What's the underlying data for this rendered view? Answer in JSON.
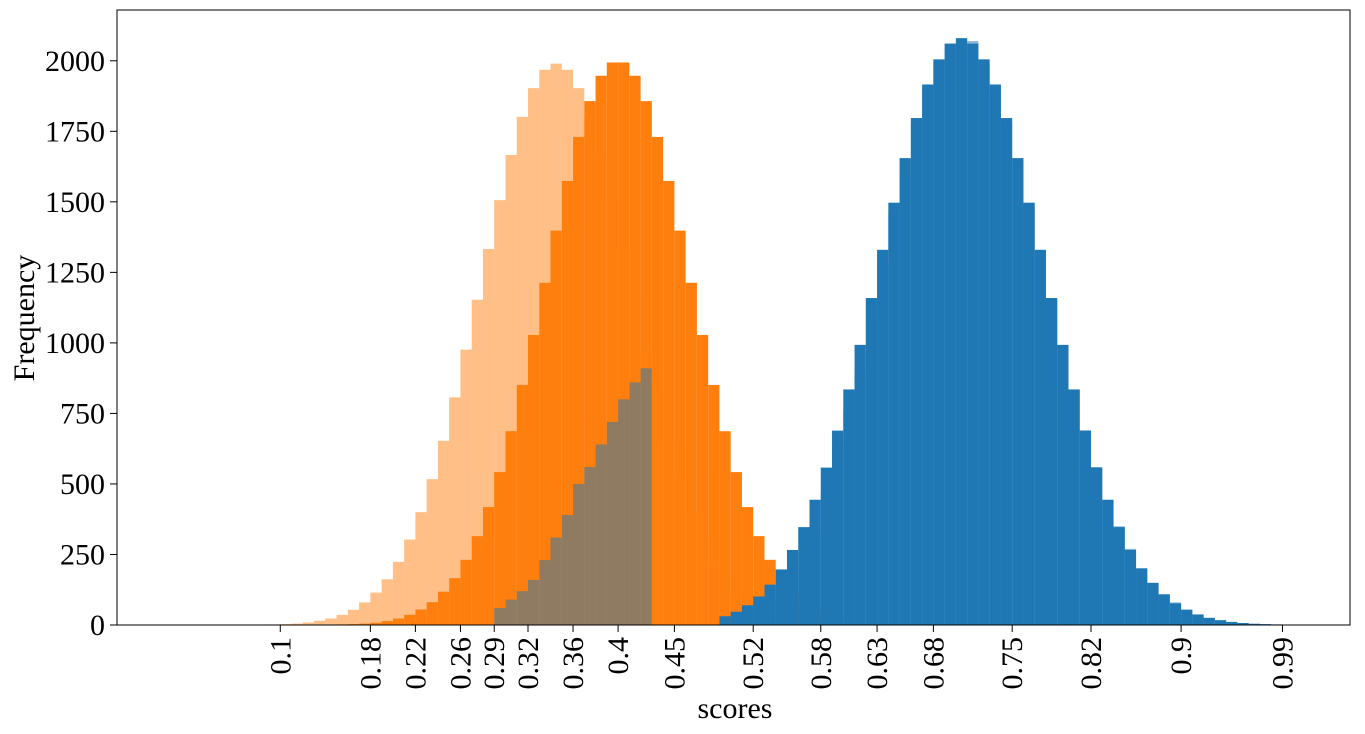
{
  "chart_data": {
    "type": "histogram",
    "xlabel": "scores",
    "ylabel": "Frequency",
    "bins": [
      0.09,
      0.1,
      0.11,
      0.12,
      0.13,
      0.14,
      0.15,
      0.16,
      0.17,
      0.18,
      0.19,
      0.2,
      0.21,
      0.22,
      0.23,
      0.24,
      0.25,
      0.26,
      0.27,
      0.28,
      0.29,
      0.3,
      0.31,
      0.32,
      0.33,
      0.34,
      0.35,
      0.36,
      0.37,
      0.38,
      0.39,
      0.4,
      0.41,
      0.42,
      0.43,
      0.44,
      0.45,
      0.46,
      0.47,
      0.48,
      0.49,
      0.5,
      0.51,
      0.52,
      0.53,
      0.54,
      0.55,
      0.56,
      0.57,
      0.58,
      0.59,
      0.6,
      0.61,
      0.62,
      0.63,
      0.64,
      0.65,
      0.66,
      0.67,
      0.68,
      0.69,
      0.7,
      0.71,
      0.72,
      0.73,
      0.74,
      0.75,
      0.76,
      0.77,
      0.78,
      0.79,
      0.8,
      0.81,
      0.82,
      0.83,
      0.84,
      0.85,
      0.86,
      0.87,
      0.88,
      0.89,
      0.9,
      0.91,
      0.92,
      0.93,
      0.94,
      0.95,
      0.96,
      0.97,
      0.98,
      0.99,
      1.0
    ],
    "series": [
      {
        "color": "#ff7f0e",
        "opacity": 0.5,
        "values": [
          2,
          3,
          5,
          9,
          15,
          23,
          36,
          54,
          80,
          115,
          162,
          224,
          303,
          400,
          517,
          653,
          807,
          976,
          1153,
          1333,
          1506,
          1666,
          1801,
          1903,
          1968,
          1990,
          1968,
          1903,
          1801,
          1666,
          1506,
          1333,
          1153,
          976,
          807,
          653,
          517,
          400,
          303,
          224,
          162,
          115,
          80,
          54,
          36,
          23,
          15,
          9,
          5,
          3,
          2,
          0,
          0,
          0,
          0,
          0,
          0,
          0,
          0,
          0,
          0,
          0,
          0,
          0,
          0,
          0,
          0,
          0,
          0,
          0,
          0,
          0,
          0,
          0,
          0,
          0,
          0,
          0,
          0,
          0,
          0,
          0,
          0,
          0,
          0,
          0,
          0,
          0,
          0,
          0,
          0
        ]
      },
      {
        "color": "#ff7f0e",
        "opacity": 1,
        "values": [
          0,
          0,
          0,
          0,
          0,
          0,
          2,
          3,
          5,
          8,
          14,
          23,
          36,
          55,
          81,
          118,
          166,
          231,
          315,
          418,
          542,
          687,
          851,
          1028,
          1213,
          1398,
          1574,
          1730,
          1857,
          1947,
          1994,
          1994,
          1947,
          1857,
          1730,
          1574,
          1398,
          1213,
          1028,
          851,
          687,
          542,
          418,
          315,
          231,
          166,
          116,
          80,
          53,
          35,
          22,
          14,
          8,
          5,
          3,
          2,
          0,
          0,
          0,
          0,
          0,
          0,
          0,
          0,
          0,
          0,
          0,
          0,
          0,
          0,
          0,
          0,
          0,
          0,
          0,
          0,
          0,
          0,
          0,
          0,
          0,
          0,
          0,
          0,
          0,
          0,
          0,
          0,
          0,
          0,
          0
        ]
      },
      {
        "color": "#1f77b4",
        "opacity": 1,
        "values": [
          0,
          0,
          0,
          0,
          0,
          0,
          0,
          0,
          0,
          0,
          0,
          0,
          0,
          0,
          0,
          0,
          0,
          0,
          0,
          0,
          0,
          0,
          0,
          0,
          0,
          0,
          0,
          0,
          0,
          0,
          0,
          0,
          0,
          0,
          0,
          0,
          0,
          0,
          0,
          0,
          31,
          47,
          70,
          101,
          143,
          197,
          266,
          347,
          444,
          558,
          689,
          835,
          993,
          1159,
          1330,
          1497,
          1655,
          1797,
          1916,
          2005,
          2061,
          2080,
          2061,
          2005,
          1916,
          1797,
          1655,
          1497,
          1330,
          1159,
          993,
          835,
          689,
          558,
          444,
          347,
          266,
          201,
          149,
          108,
          77,
          54,
          37,
          25,
          17,
          11,
          7,
          4,
          3,
          2,
          1
        ]
      },
      {
        "color": "#1f77b4",
        "opacity": 0.5,
        "values": [
          0,
          0,
          0,
          0,
          0,
          0,
          0,
          0,
          0,
          0,
          0,
          0,
          0,
          0,
          0,
          0,
          0,
          0,
          0,
          0,
          60,
          90,
          120,
          160,
          230,
          310,
          390,
          500,
          560,
          640,
          720,
          800,
          860,
          910,
          0,
          0,
          0,
          0,
          0,
          0,
          20,
          40,
          60,
          60,
          90,
          130,
          180,
          250,
          320,
          470,
          640,
          760,
          900,
          1080,
          1280,
          1460,
          1600,
          1780,
          1900,
          2000,
          2040,
          2080,
          2070,
          1980,
          1900,
          1780,
          1640,
          1490,
          1320,
          1150,
          990,
          830,
          690,
          560,
          440,
          350,
          270,
          200,
          150,
          110,
          80,
          55,
          38,
          26,
          17,
          11,
          7,
          5,
          3,
          2,
          1
        ]
      }
    ],
    "xlim": [
      -0.045,
      1.05
    ],
    "ylim": [
      0,
      2180
    ],
    "xticks": [
      0.1,
      0.18,
      0.22,
      0.26,
      0.29,
      0.32,
      0.36,
      0.4,
      0.45,
      0.52,
      0.58,
      0.63,
      0.68,
      0.75,
      0.82,
      0.9,
      0.99
    ],
    "yticks": [
      0,
      250,
      500,
      750,
      1000,
      1250,
      1500,
      1750,
      2000
    ]
  }
}
